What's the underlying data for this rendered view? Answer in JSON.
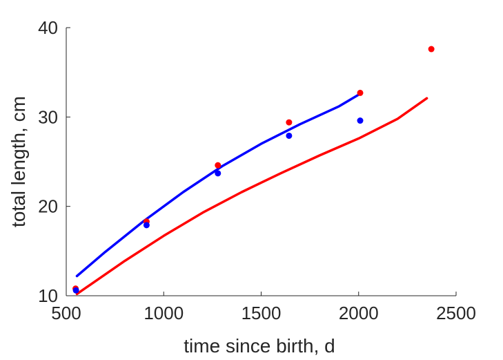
{
  "chart_data": {
    "type": "scatter",
    "title": "",
    "xlabel": "time since birth, d",
    "ylabel": "total length, cm",
    "xlim": [
      500,
      2500
    ],
    "ylim": [
      10,
      40
    ],
    "xticks": [
      500,
      1000,
      1500,
      2000,
      2500
    ],
    "yticks": [
      10,
      20,
      30,
      40
    ],
    "xtick_labels": [
      "500",
      "1000",
      "1500",
      "2000",
      "2500"
    ],
    "ytick_labels": [
      "10",
      "20",
      "30",
      "40"
    ],
    "grid": false,
    "legend": "none",
    "series": [
      {
        "kind": "points",
        "color": "#ff0000",
        "points": [
          [
            548,
            10.8
          ],
          [
            912,
            18.3
          ],
          [
            1278,
            24.6
          ],
          [
            1643,
            29.4
          ],
          [
            2008,
            32.7
          ],
          [
            2373,
            37.6
          ]
        ]
      },
      {
        "kind": "points",
        "color": "#0000ff",
        "points": [
          [
            550,
            10.6
          ],
          [
            912,
            17.9
          ],
          [
            1278,
            23.7
          ],
          [
            1643,
            27.9
          ],
          [
            2008,
            29.6
          ]
        ]
      },
      {
        "kind": "line",
        "color": "#0000ff",
        "points": [
          [
            555,
            12.2
          ],
          [
            700,
            14.9
          ],
          [
            900,
            18.4
          ],
          [
            1100,
            21.6
          ],
          [
            1300,
            24.5
          ],
          [
            1500,
            27.0
          ],
          [
            1700,
            29.2
          ],
          [
            1900,
            31.2
          ],
          [
            2008,
            32.6
          ]
        ]
      },
      {
        "kind": "line",
        "color": "#ff0000",
        "points": [
          [
            555,
            10.2
          ],
          [
            800,
            13.9
          ],
          [
            1000,
            16.7
          ],
          [
            1200,
            19.3
          ],
          [
            1400,
            21.6
          ],
          [
            1600,
            23.7
          ],
          [
            1800,
            25.7
          ],
          [
            2000,
            27.6
          ],
          [
            2200,
            29.8
          ],
          [
            2350,
            32.1
          ]
        ]
      }
    ]
  }
}
